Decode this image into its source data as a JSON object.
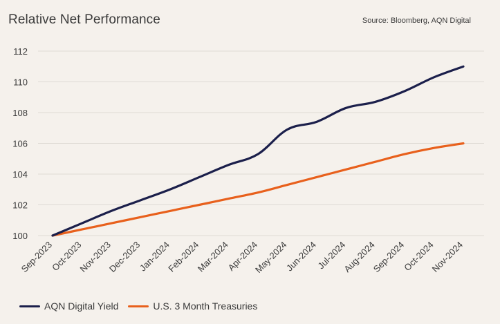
{
  "header": {
    "title": "Relative Net Performance",
    "source": "Source: Bloomberg, AQN Digital"
  },
  "chart_data": {
    "type": "line",
    "title": "Relative Net Performance",
    "xlabel": "",
    "ylabel": "",
    "ylim": [
      100,
      112
    ],
    "yticks": [
      100,
      102,
      104,
      106,
      108,
      110,
      112
    ],
    "grid": true,
    "legend_position": "bottom-left",
    "categories": [
      "Sep-2023",
      "Oct-2023",
      "Nov-2023",
      "Dec-2023",
      "Jan-2024",
      "Feb-2024",
      "Mar-2024",
      "Apr-2024",
      "May-2024",
      "Jun-2024",
      "Jul-2024",
      "Aug-2024",
      "Sep-2024",
      "Oct-2024",
      "Nov-2024"
    ],
    "series": [
      {
        "name": "AQN Digital Yield",
        "color": "#1b1f4b",
        "values": [
          100.0,
          100.8,
          101.6,
          102.3,
          103.0,
          103.8,
          104.6,
          105.3,
          106.9,
          107.4,
          108.3,
          108.7,
          109.4,
          110.3,
          111.0
        ]
      },
      {
        "name": "U.S. 3 Month Treasuries",
        "color": "#e8601c",
        "values": [
          100.0,
          100.4,
          100.8,
          101.2,
          101.6,
          102.0,
          102.4,
          102.8,
          103.3,
          103.8,
          104.3,
          104.8,
          105.3,
          105.7,
          106.0
        ]
      }
    ]
  }
}
